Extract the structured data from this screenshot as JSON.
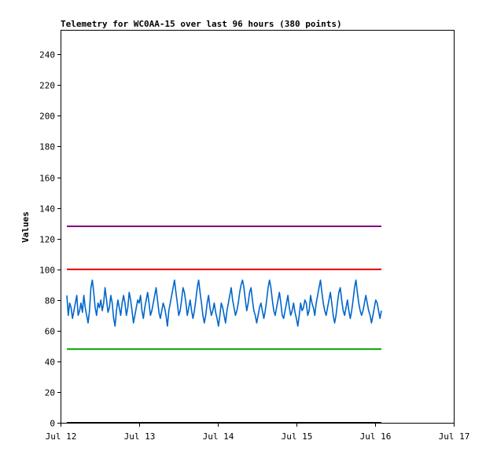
{
  "chart_data": {
    "type": "line",
    "title": "Telemetry for WC0AA-15 over last 96 hours (380 points)",
    "xlabel": "",
    "ylabel": "Values",
    "x_ticks": [
      "Jul 12",
      "Jul 13",
      "Jul 14",
      "Jul 15",
      "Jul 16",
      "Jul 17"
    ],
    "x_range_days": [
      0,
      5
    ],
    "ylim": [
      0,
      256
    ],
    "y_ticks": [
      0,
      20,
      40,
      60,
      80,
      100,
      120,
      140,
      160,
      180,
      200,
      220,
      240
    ],
    "grid": false,
    "legend": "none",
    "series": [
      {
        "color": "#800080",
        "style": "flat",
        "value": 128
      },
      {
        "color": "#e00000",
        "style": "flat",
        "value": 100
      },
      {
        "color": "#00a000",
        "style": "flat",
        "value": 48
      },
      {
        "color": "#000000",
        "style": "flat",
        "value": 0
      },
      {
        "color": "#0066cc",
        "style": "trace",
        "min": 63,
        "max": 93,
        "values": [
          83,
          70,
          78,
          75,
          68,
          73,
          78,
          83,
          70,
          73,
          78,
          72,
          83,
          75,
          70,
          65,
          73,
          88,
          93,
          85,
          75,
          70,
          78,
          75,
          80,
          73,
          78,
          88,
          80,
          72,
          75,
          83,
          78,
          68,
          63,
          73,
          80,
          75,
          70,
          78,
          83,
          78,
          70,
          75,
          85,
          80,
          73,
          65,
          70,
          75,
          80,
          78,
          83,
          73,
          68,
          75,
          80,
          85,
          78,
          70,
          73,
          78,
          83,
          88,
          80,
          72,
          68,
          73,
          78,
          75,
          70,
          63,
          73,
          78,
          83,
          88,
          93,
          85,
          78,
          70,
          73,
          80,
          88,
          85,
          78,
          70,
          75,
          80,
          73,
          68,
          73,
          80,
          88,
          93,
          85,
          78,
          70,
          65,
          70,
          78,
          83,
          75,
          70,
          73,
          78,
          72,
          68,
          63,
          70,
          78,
          75,
          70,
          65,
          73,
          78,
          83,
          88,
          80,
          75,
          70,
          73,
          78,
          85,
          90,
          93,
          88,
          80,
          73,
          78,
          85,
          88,
          80,
          73,
          70,
          65,
          70,
          75,
          78,
          73,
          68,
          73,
          80,
          88,
          93,
          88,
          80,
          73,
          70,
          75,
          80,
          85,
          78,
          70,
          68,
          73,
          78,
          83,
          75,
          70,
          73,
          78,
          72,
          68,
          63,
          70,
          78,
          73,
          75,
          80,
          78,
          70,
          73,
          83,
          78,
          75,
          70,
          78,
          83,
          88,
          93,
          85,
          78,
          73,
          70,
          75,
          80,
          85,
          78,
          70,
          65,
          70,
          78,
          85,
          88,
          80,
          73,
          70,
          75,
          80,
          73,
          68,
          73,
          80,
          88,
          93,
          85,
          78,
          73,
          70,
          73,
          78,
          83,
          78,
          73,
          70,
          65,
          70,
          75,
          80,
          78,
          73,
          68,
          73
        ]
      }
    ]
  }
}
